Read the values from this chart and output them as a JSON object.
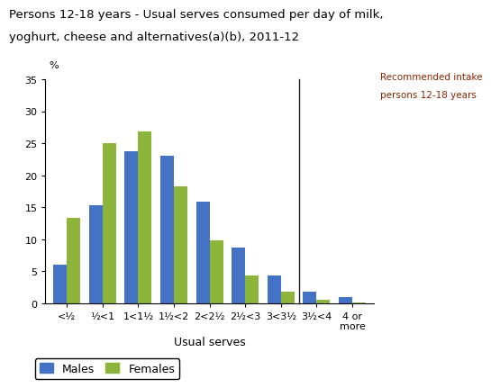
{
  "title_line1": "Persons 12-18 years - Usual serves consumed per day of milk,",
  "title_line2": "yoghurt, cheese and alternatives(a)(b), 2011-12",
  "categories": [
    "<½",
    "½<1",
    "1<1½",
    "1½<2",
    "2<2½",
    "2½<3",
    "3<3½",
    "3½<4",
    "4 or\nmore"
  ],
  "males": [
    6.0,
    15.3,
    23.7,
    23.0,
    15.9,
    8.7,
    4.4,
    1.8,
    1.0
  ],
  "females": [
    13.3,
    25.0,
    26.8,
    18.2,
    9.9,
    4.4,
    1.8,
    0.5,
    0.2
  ],
  "male_color": "#4472C4",
  "female_color": "#8DB53C",
  "pct_label": "%",
  "xlabel": "Usual serves",
  "ylim": [
    0,
    35
  ],
  "yticks": [
    0,
    5,
    10,
    15,
    20,
    25,
    30,
    35
  ],
  "vline_label_line1": "Recommended intake",
  "vline_label_line2": "persons 12-18 years",
  "vline_color": "#1F1F1F",
  "vline_label_color": "#8B2500",
  "background_color": "#FFFFFF",
  "title_fontsize": 9.5,
  "tick_fontsize": 8,
  "axis_label_fontsize": 9,
  "legend_fontsize": 9,
  "bar_width": 0.38
}
